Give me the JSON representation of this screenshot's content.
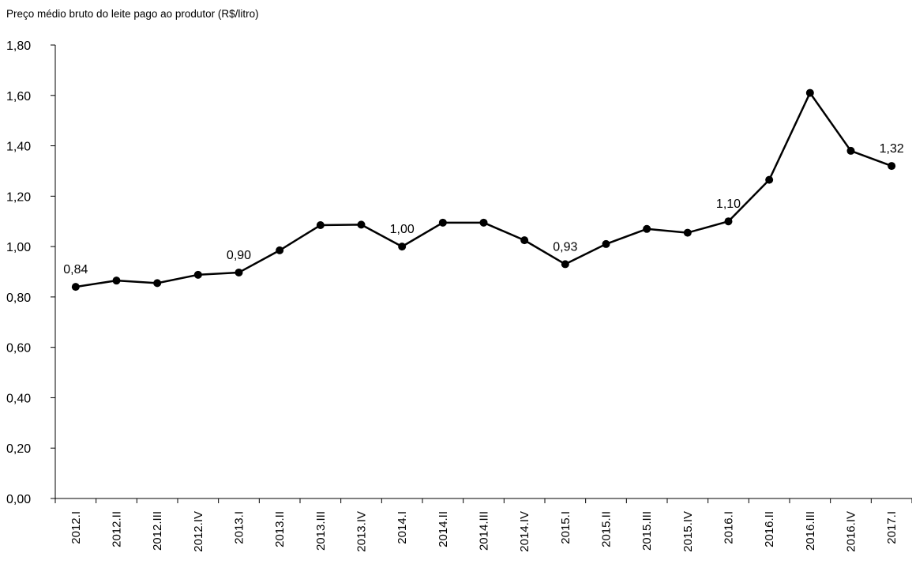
{
  "chart_data": {
    "type": "line",
    "title": "Preço médio bruto do leite pago ao produtor (R$/litro)",
    "xlabel": "",
    "ylabel": "",
    "ylim": [
      0,
      1.8
    ],
    "yticks": [
      "0,00",
      "0,20",
      "0,40",
      "0,60",
      "0,80",
      "1,00",
      "1,20",
      "1,40",
      "1,60",
      "1,80"
    ],
    "categories": [
      "2012.I",
      "2012.II",
      "2012.III",
      "2012.IV",
      "2013.I",
      "2013.II",
      "2013.III",
      "2013.IV",
      "2014.I",
      "2014.II",
      "2014.III",
      "2014.IV",
      "2015.I",
      "2015.II",
      "2015.III",
      "2015.IV",
      "2016.I",
      "2016.II",
      "2016.III",
      "2016.IV",
      "2017.I"
    ],
    "series": [
      {
        "values": [
          0.84,
          0.865,
          0.855,
          0.888,
          0.897,
          0.985,
          1.085,
          1.087,
          1.0,
          1.095,
          1.095,
          1.025,
          0.93,
          1.01,
          1.07,
          1.055,
          1.1,
          1.265,
          1.61,
          1.38,
          1.32
        ]
      }
    ],
    "data_labels": [
      {
        "index": 0,
        "text": "0,84"
      },
      {
        "index": 4,
        "text": "0,90"
      },
      {
        "index": 8,
        "text": "1,00"
      },
      {
        "index": 12,
        "text": "0,93"
      },
      {
        "index": 16,
        "text": "1,10"
      },
      {
        "index": 20,
        "text": "1,32"
      }
    ],
    "grid": false,
    "line_color": "#000000"
  }
}
